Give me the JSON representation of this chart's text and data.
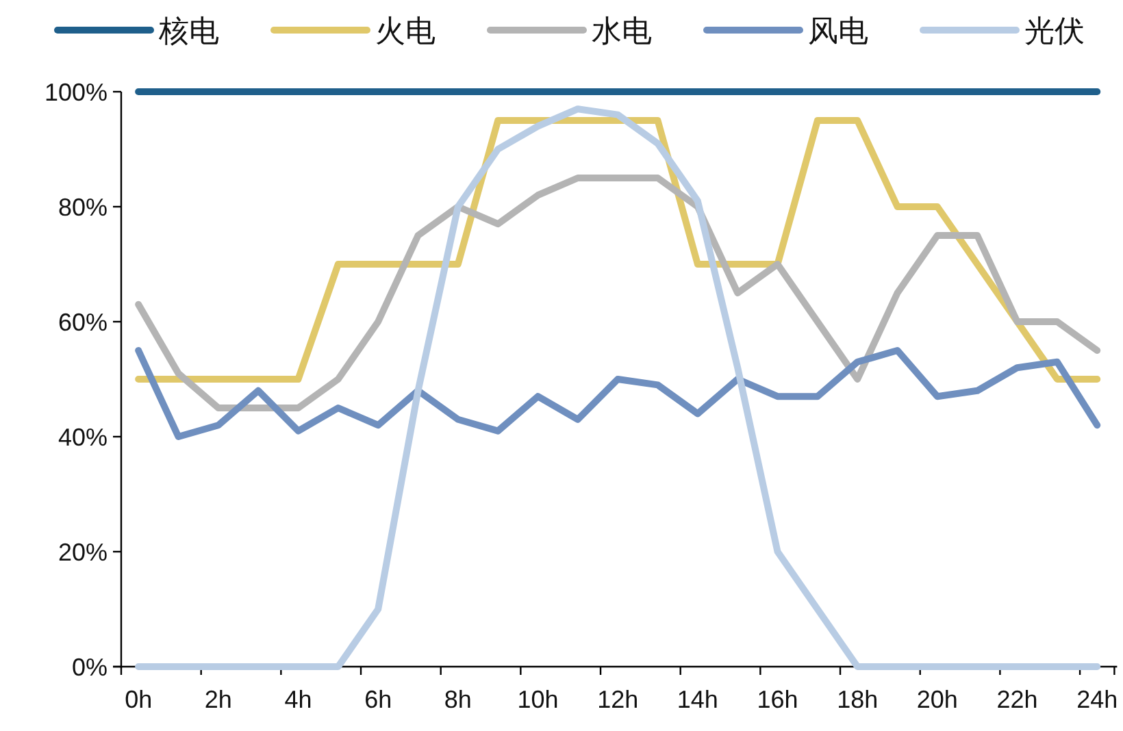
{
  "chart_data": {
    "type": "line",
    "categories": [
      "0h",
      null,
      "2h",
      null,
      "4h",
      null,
      "6h",
      null,
      "8h",
      null,
      "10h",
      null,
      "12h",
      null,
      "14h",
      null,
      "16h",
      null,
      "18h",
      null,
      "20h",
      null,
      "22h",
      null,
      "24h"
    ],
    "ylim": [
      0,
      100
    ],
    "yticks": [
      {
        "value": 0,
        "label": "0%"
      },
      {
        "value": 20,
        "label": "20%"
      },
      {
        "value": 40,
        "label": "40%"
      },
      {
        "value": 60,
        "label": "60%"
      },
      {
        "value": 80,
        "label": "80%"
      },
      {
        "value": 100,
        "label": "100%"
      }
    ],
    "legend": "top",
    "grid": false,
    "marker": "none",
    "line_style": "solid",
    "series": [
      {
        "name": "核电",
        "color": "#1f5f8b",
        "values": [
          100,
          100,
          100,
          100,
          100,
          100,
          100,
          100,
          100,
          100,
          100,
          100,
          100,
          100,
          100,
          100,
          100,
          100,
          100,
          100,
          100,
          100,
          100,
          100,
          100
        ]
      },
      {
        "name": "火电",
        "color": "#e0c86a",
        "values": [
          50,
          50,
          50,
          50,
          50,
          70,
          70,
          70,
          70,
          95,
          95,
          95,
          95,
          95,
          70,
          70,
          70,
          95,
          95,
          80,
          80,
          70,
          60,
          50,
          50
        ]
      },
      {
        "name": "水电",
        "color": "#b4b4b4",
        "values": [
          63,
          51,
          45,
          45,
          45,
          50,
          60,
          75,
          80,
          77,
          82,
          85,
          85,
          85,
          80,
          65,
          70,
          60,
          50,
          65,
          75,
          75,
          60,
          60,
          55
        ]
      },
      {
        "name": "风电",
        "color": "#6f8fbf",
        "values": [
          55,
          40,
          42,
          48,
          41,
          45,
          42,
          48,
          43,
          41,
          47,
          43,
          50,
          49,
          44,
          50,
          47,
          47,
          53,
          55,
          47,
          48,
          52,
          53,
          42
        ]
      },
      {
        "name": "光伏",
        "color": "#b8cce4",
        "values": [
          0,
          0,
          0,
          0,
          0,
          0,
          10,
          48,
          80,
          90,
          94,
          97,
          96,
          91,
          81,
          52,
          20,
          10,
          0,
          0,
          0,
          0,
          0,
          0,
          0
        ]
      }
    ]
  }
}
